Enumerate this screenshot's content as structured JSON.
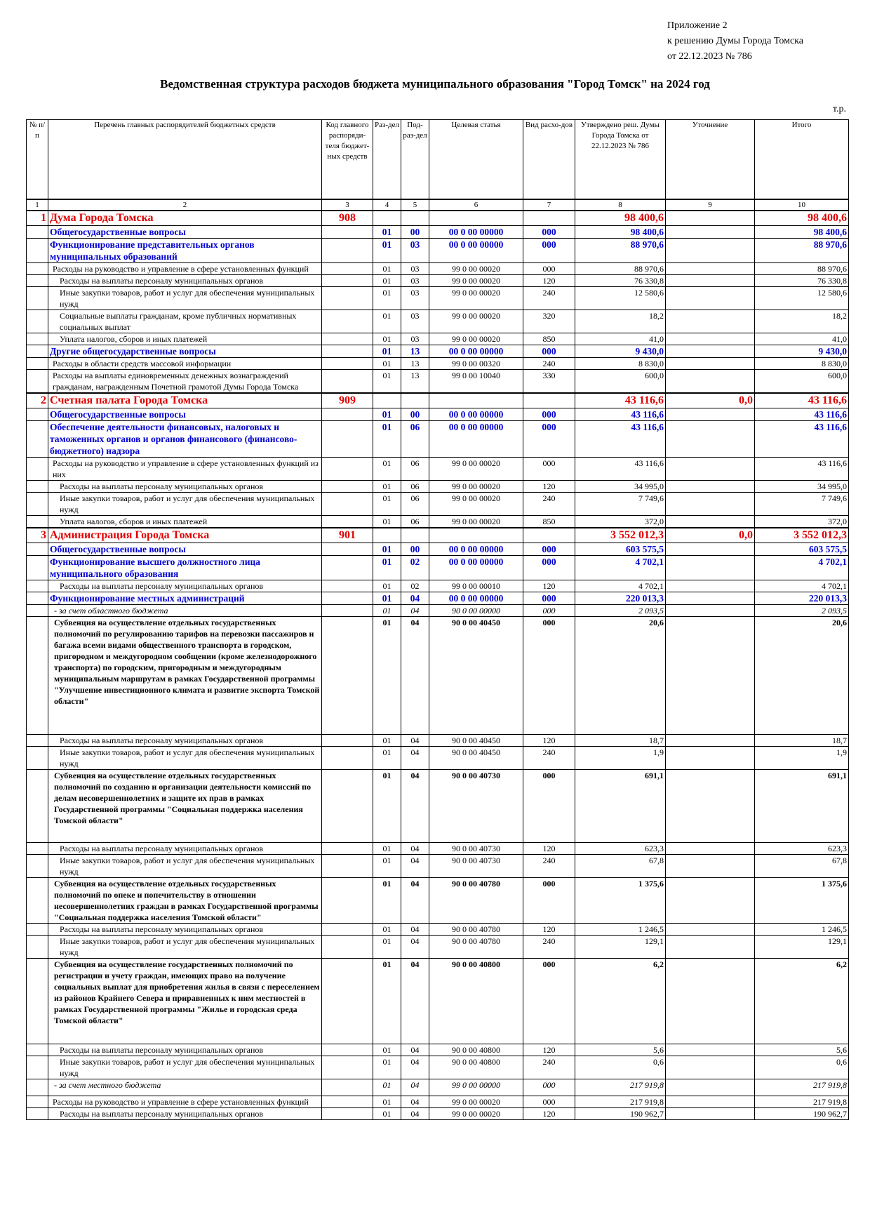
{
  "header": {
    "appendix": "Приложение 2",
    "decision": "к решению Думы Города Томска",
    "date": "от 22.12.2023 № 786",
    "title": "Ведомственная структура расходов бюджета муниципального образования \"Город Томск\" на 2024 год",
    "unit": "т.р."
  },
  "table": {
    "columns": [
      "№ п/п",
      "Перечень главных распорядителей бюджетных средств",
      "Код главного распоряди-теля бюджет-ных средств",
      "Раз-дел",
      "Под-раз-дел",
      "Целевая статья",
      "Вид расхо-дов",
      "Утверждено реш. Думы Города Томска от 22.12.2023 № 786",
      "Уточнение",
      "Итого"
    ],
    "column_numbers": [
      1,
      2,
      3,
      4,
      5,
      6,
      7,
      8,
      9,
      10
    ],
    "rows": [
      [
        1,
        "Дума Города Томска",
        "908",
        null,
        null,
        null,
        null,
        "98 400,6",
        null,
        "98 400,6"
      ],
      [
        null,
        "Общегосударственные вопросы",
        null,
        "01",
        "00",
        "00 0 00 00000",
        "000",
        "98 400,6",
        null,
        "98 400,6"
      ],
      [
        null,
        "Функционирование представительных органов муниципальных образований",
        null,
        "01",
        "03",
        "00 0 00 00000",
        "000",
        "88 970,6",
        null,
        "88 970,6"
      ],
      [
        null,
        "Расходы на руководство и управление в сфере установленных функций",
        null,
        "01",
        "03",
        "99 0 00 00020",
        "000",
        "88 970,6",
        null,
        "88 970,6"
      ],
      [
        null,
        "Расходы на выплаты персоналу муниципальных органов",
        null,
        "01",
        "03",
        "99 0 00 00020",
        "120",
        "76 330,8",
        null,
        "76 330,8"
      ],
      [
        null,
        "Иные закупки товаров, работ и услуг для обеспечения муниципальных нужд",
        null,
        "01",
        "03",
        "99 0 00 00020",
        "240",
        "12 580,6",
        null,
        "12 580,6"
      ],
      [
        null,
        "Социальные выплаты гражданам, кроме публичных нормативных социальных выплат",
        null,
        "01",
        "03",
        "99 0 00 00020",
        "320",
        "18,2",
        null,
        "18,2"
      ],
      [
        null,
        "Уплата налогов, сборов и иных платежей",
        null,
        "01",
        "03",
        "99 0 00 00020",
        "850",
        "41,0",
        null,
        "41,0"
      ],
      [
        null,
        "Другие общегосударственные вопросы",
        null,
        "01",
        "13",
        "00 0 00 00000",
        "000",
        "9 430,0",
        null,
        "9 430,0"
      ],
      [
        null,
        "Расходы в области средств массовой информации",
        null,
        "01",
        "13",
        "99 0 00 00320",
        "240",
        "8 830,0",
        null,
        "8 830,0"
      ],
      [
        null,
        "Расходы на выплаты единовременных денежных вознаграждений гражданам, награжденным Почетной грамотой Думы Города Томска",
        null,
        "01",
        "13",
        "99 0 00 10040",
        "330",
        "600,0",
        null,
        "600,0"
      ],
      [
        2,
        "Счетная палата Города Томска",
        "909",
        null,
        null,
        null,
        null,
        "43 116,6",
        "0,0",
        "43 116,6"
      ],
      [
        null,
        "Общегосударственные вопросы",
        null,
        "01",
        "00",
        "00 0 00 00000",
        "000",
        "43 116,6",
        null,
        "43 116,6"
      ],
      [
        null,
        "Обеспечение деятельности финансовых, налоговых и таможенных органов и органов финансового (финансово-бюджетного) надзора",
        null,
        "01",
        "06",
        "00 0 00 00000",
        "000",
        "43 116,6",
        null,
        "43 116,6"
      ],
      [
        null,
        "Расходы на руководство и управление в сфере установленных функций из них",
        null,
        "01",
        "06",
        "99 0 00 00020",
        "000",
        "43 116,6",
        null,
        "43 116,6"
      ],
      [
        null,
        "Расходы на выплаты персоналу муниципальных органов",
        null,
        "01",
        "06",
        "99 0 00 00020",
        "120",
        "34 995,0",
        null,
        "34 995,0"
      ],
      [
        null,
        "Иные закупки товаров, работ и услуг для обеспечения муниципальных нужд",
        null,
        "01",
        "06",
        "99 0 00 00020",
        "240",
        "7 749,6",
        null,
        "7 749,6"
      ],
      [
        null,
        "Уплата налогов, сборов и иных платежей",
        null,
        "01",
        "06",
        "99 0 00 00020",
        "850",
        "372,0",
        null,
        "372,0"
      ],
      [
        3,
        "Администрация Города Томска",
        "901",
        null,
        null,
        null,
        null,
        "3 552 012,3",
        "0,0",
        "3 552 012,3"
      ],
      [
        null,
        "Общегосударственные вопросы",
        null,
        "01",
        "00",
        "00 0 00 00000",
        "000",
        "603 575,5",
        null,
        "603 575,5"
      ],
      [
        null,
        "Функционирование высшего должностного лица муниципального образования",
        null,
        "01",
        "02",
        "00 0 00 00000",
        "000",
        "4 702,1",
        null,
        "4 702,1"
      ],
      [
        null,
        "Расходы на выплаты персоналу муниципальных органов",
        null,
        "01",
        "02",
        "99 0 00 00010",
        "120",
        "4 702,1",
        null,
        "4 702,1"
      ],
      [
        null,
        "Функционирование местных администраций",
        null,
        "01",
        "04",
        "00 0 00 00000",
        "000",
        "220 013,3",
        null,
        "220 013,3"
      ],
      [
        null,
        "- за счет областного бюджета",
        null,
        "01",
        "04",
        "90 0 00 00000",
        "000",
        "2 093,5",
        null,
        "2 093,5"
      ],
      [
        null,
        "Субвенция на осуществление отдельных государственных полномочий по регулированию тарифов на перевозки пассажиров и багажа всеми видами общественного транспорта в городском, пригородном и междугородном сообщении (кроме железнодорожного транспорта) по городским, пригородным и междугородным муниципальным маршрутам в рамках Государственной программы \"Улучшение инвестиционного климата и развитие экспорта Томской области\"",
        null,
        "01",
        "04",
        "90 0 00 40450",
        "000",
        "20,6",
        null,
        "20,6"
      ],
      [
        null,
        "Расходы на выплаты персоналу муниципальных органов",
        null,
        "01",
        "04",
        "90 0 00 40450",
        "120",
        "18,7",
        null,
        "18,7"
      ],
      [
        null,
        "Иные закупки товаров, работ и услуг для обеспечения муниципальных нужд",
        null,
        "01",
        "04",
        "90 0 00 40450",
        "240",
        "1,9",
        null,
        "1,9"
      ],
      [
        null,
        "Субвенция на осуществление отдельных государственных полномочий по созданию и организации деятельности комиссий по делам несовершеннолетних и защите их прав в рамках Государственной программы \"Социальная поддержка населения Томской области\"",
        null,
        "01",
        "04",
        "90 0 00 40730",
        "000",
        "691,1",
        null,
        "691,1"
      ],
      [
        null,
        "Расходы на выплаты персоналу муниципальных органов",
        null,
        "01",
        "04",
        "90 0 00 40730",
        "120",
        "623,3",
        null,
        "623,3"
      ],
      [
        null,
        "Иные закупки товаров, работ и услуг для обеспечения муниципальных нужд",
        null,
        "01",
        "04",
        "90 0 00 40730",
        "240",
        "67,8",
        null,
        "67,8"
      ],
      [
        null,
        "Субвенция на осуществление отдельных государственных полномочий по опеке и попечительству в отношении несовершеннолетних граждан в рамках Государственной программы \"Социальная поддержка населения Томской области\"",
        null,
        "01",
        "04",
        "90 0 00 40780",
        "000",
        "1 375,6",
        null,
        "1 375,6"
      ],
      [
        null,
        "Расходы на выплаты персоналу муниципальных органов",
        null,
        "01",
        "04",
        "90 0 00 40780",
        "120",
        "1 246,5",
        null,
        "1 246,5"
      ],
      [
        null,
        "Иные закупки товаров, работ и услуг для обеспечения муниципальных нужд",
        null,
        "01",
        "04",
        "90 0 00 40780",
        "240",
        "129,1",
        null,
        "129,1"
      ],
      [
        null,
        "Субвенция на осуществление государственных полномочий по регистрации и учету граждан, имеющих право на получение социальных выплат для приобретения жилья в связи с переселением из районов Крайнего Севера и приравненных к ним местностей в рамках Государственной программы \"Жилье и городская среда Томской области\"",
        null,
        "01",
        "04",
        "90 0 00 40800",
        "000",
        "6,2",
        null,
        "6,2"
      ],
      [
        null,
        "Расходы на выплаты персоналу муниципальных органов",
        null,
        "01",
        "04",
        "90 0 00 40800",
        "120",
        "5,6",
        null,
        "5,6"
      ],
      [
        null,
        "Иные закупки товаров, работ и услуг для обеспечения муниципальных нужд",
        null,
        "01",
        "04",
        "90 0 00 40800",
        "240",
        "0,6",
        null,
        "0,6"
      ],
      [
        null,
        "- за счет местного бюджета",
        null,
        "01",
        "04",
        "99 0 00 00000",
        "000",
        "217 919,8",
        null,
        "217 919,8"
      ],
      [
        null,
        "Расходы на руководство и управление в сфере установленных функций",
        null,
        "01",
        "04",
        "99 0 00 00020",
        "000",
        "217 919,8",
        null,
        "217 919,8"
      ],
      [
        null,
        "Расходы на выплаты персоналу муниципальных органов",
        null,
        "01",
        "04",
        "99 0 00 00020",
        "120",
        "190 962,7",
        null,
        "190 962,7"
      ]
    ]
  }
}
